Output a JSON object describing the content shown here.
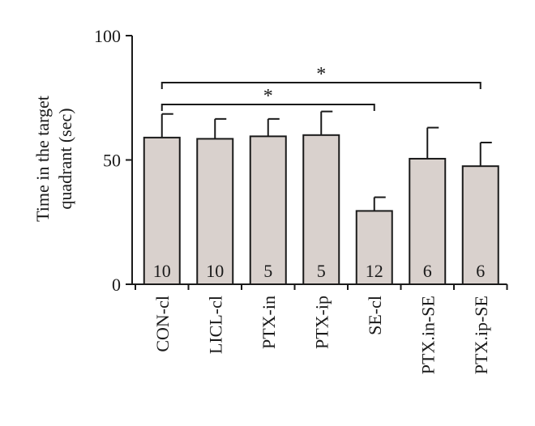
{
  "chart_data": {
    "type": "bar",
    "title": "",
    "xlabel": "",
    "ylabel_lines": [
      "Time in the target",
      "quadrant (sec)"
    ],
    "ylim": [
      0,
      100
    ],
    "yticks": [
      "0",
      "50",
      "100"
    ],
    "ytick_values": [
      0,
      50,
      100
    ],
    "categories": [
      "CON-cl",
      "LICL-cl",
      "PTX-in",
      "PTX-ip",
      "SE-cl",
      "PTX.in-SE",
      "PTX.ip-SE"
    ],
    "values": [
      59,
      58.5,
      59.5,
      60,
      29.5,
      50.5,
      47.5
    ],
    "error_upper": [
      68.5,
      66.5,
      66.5,
      69.5,
      35,
      63,
      57
    ],
    "sample_sizes": [
      "10",
      "10",
      "5",
      "5",
      "12",
      "6",
      "6"
    ],
    "significance": [
      {
        "from": 0,
        "to": 4,
        "label": "*"
      },
      {
        "from": 0,
        "to": 6,
        "label": "*"
      }
    ],
    "bar_color": "#d9d1cd",
    "edge_color": "#1a1a1a",
    "grid": false
  }
}
